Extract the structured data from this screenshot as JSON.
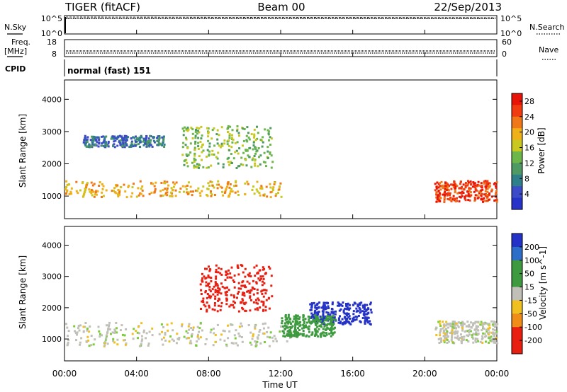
{
  "header": {
    "station": "TIGER (fitACF)",
    "beam": "Beam 00",
    "date": "22/Sep/2013"
  },
  "panels": {
    "nsky": {
      "label": "N.Sky",
      "ticks": [
        "10^5",
        "10^0"
      ],
      "right_ticks": [
        "10^5",
        "10^0"
      ],
      "right_label": "N.Search"
    },
    "freq": {
      "label_line1": "Freq.",
      "label_line2": "[MHz]",
      "ticks": [
        "18",
        "8"
      ],
      "right_ticks": [
        "60",
        "0"
      ],
      "right_label": "Nave"
    },
    "cpid": {
      "label": "CPID",
      "text": "normal (fast) 151"
    }
  },
  "chart_data": [
    {
      "type": "heatmap",
      "name": "power",
      "ylabel": "Slant Range [km]",
      "xlabel": "Time UT",
      "xlim": [
        0,
        24
      ],
      "ylim": [
        300,
        4600
      ],
      "yticks": [
        "4000",
        "3000",
        "2000",
        "1000"
      ],
      "xticks": [
        "00:00",
        "04:00",
        "08:00",
        "12:00",
        "16:00",
        "20:00",
        "00:00"
      ],
      "colorbar": {
        "label": "Power [dB]",
        "ticks": [
          "28",
          "24",
          "20",
          "16",
          "12",
          "8",
          "4"
        ],
        "range": [
          0,
          30
        ]
      },
      "features": [
        {
          "region": "main-band",
          "t": [
            0,
            12.0
          ],
          "range": [
            1000,
            1500
          ],
          "level": 20
        },
        {
          "region": "upper-band",
          "t": [
            1.0,
            5.5
          ],
          "range": [
            2550,
            2900
          ],
          "level": 7
        },
        {
          "region": "mid-arc",
          "t": [
            6.5,
            11.5
          ],
          "range": [
            1900,
            3200
          ],
          "level": 14
        },
        {
          "region": "evening-band",
          "t": [
            20.5,
            24
          ],
          "range": [
            850,
            1500
          ],
          "level": 26
        }
      ]
    },
    {
      "type": "heatmap",
      "name": "velocity",
      "ylabel": "Slant Range [km]",
      "xlabel": "Time UT",
      "xlim": [
        0,
        24
      ],
      "ylim": [
        300,
        4600
      ],
      "yticks": [
        "4000",
        "3000",
        "2000",
        "1000"
      ],
      "xticks": [
        "00:00",
        "04:00",
        "08:00",
        "12:00",
        "16:00",
        "20:00",
        "00:00"
      ],
      "colorbar": {
        "label": "Velocity [m s^-1]",
        "ticks": [
          "200",
          "100",
          "50",
          "15",
          "-15",
          "-50",
          "-100",
          "-200"
        ],
        "range": [
          -250,
          250
        ]
      },
      "features": [
        {
          "region": "ground-scatter",
          "t": [
            0,
            12.5
          ],
          "range": [
            800,
            1550
          ],
          "velocity": 0
        },
        {
          "region": "red-arc",
          "t": [
            7.5,
            11.5
          ],
          "range": [
            1900,
            3400
          ],
          "velocity": -200
        },
        {
          "region": "blue-patch",
          "t": [
            13.5,
            17.0
          ],
          "range": [
            1500,
            2200
          ],
          "velocity": 200
        },
        {
          "region": "green-patch",
          "t": [
            12.0,
            15.0
          ],
          "range": [
            1100,
            1800
          ],
          "velocity": 50
        },
        {
          "region": "evening-scatter",
          "t": [
            20.5,
            24
          ],
          "range": [
            900,
            1600
          ],
          "velocity": 0
        }
      ]
    }
  ]
}
